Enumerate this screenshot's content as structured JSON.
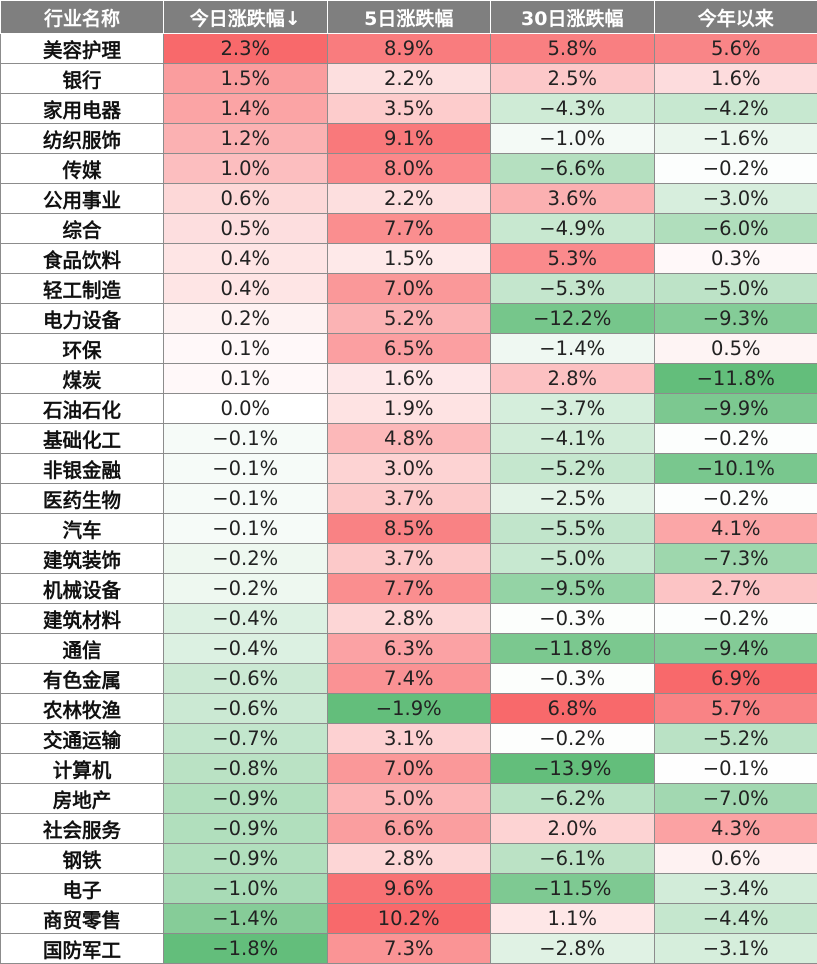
{
  "chart_data": {
    "type": "table",
    "columns": [
      "行业名称",
      "今日涨跌幅↓",
      "5日涨跌幅",
      "30日涨跌幅",
      "今年以来"
    ],
    "rows": [
      {
        "name": "美容护理",
        "values": [
          "2.3%",
          "8.9%",
          "5.8%",
          "5.6%"
        ]
      },
      {
        "name": "银行",
        "values": [
          "1.5%",
          "2.2%",
          "2.5%",
          "1.6%"
        ]
      },
      {
        "name": "家用电器",
        "values": [
          "1.4%",
          "3.5%",
          "−4.3%",
          "−4.2%"
        ]
      },
      {
        "name": "纺织服饰",
        "values": [
          "1.2%",
          "9.1%",
          "−1.0%",
          "−1.6%"
        ]
      },
      {
        "name": "传媒",
        "values": [
          "1.0%",
          "8.0%",
          "−6.6%",
          "−0.2%"
        ]
      },
      {
        "name": "公用事业",
        "values": [
          "0.6%",
          "2.2%",
          "3.6%",
          "−3.0%"
        ]
      },
      {
        "name": "综合",
        "values": [
          "0.5%",
          "7.7%",
          "−4.9%",
          "−6.0%"
        ]
      },
      {
        "name": "食品饮料",
        "values": [
          "0.4%",
          "1.5%",
          "5.3%",
          "0.3%"
        ]
      },
      {
        "name": "轻工制造",
        "values": [
          "0.4%",
          "7.0%",
          "−5.3%",
          "−5.0%"
        ]
      },
      {
        "name": "电力设备",
        "values": [
          "0.2%",
          "5.2%",
          "−12.2%",
          "−9.3%"
        ]
      },
      {
        "name": "环保",
        "values": [
          "0.1%",
          "6.5%",
          "−1.4%",
          "0.5%"
        ]
      },
      {
        "name": "煤炭",
        "values": [
          "0.1%",
          "1.6%",
          "2.8%",
          "−11.8%"
        ]
      },
      {
        "name": "石油石化",
        "values": [
          "0.0%",
          "1.9%",
          "−3.7%",
          "−9.9%"
        ]
      },
      {
        "name": "基础化工",
        "values": [
          "−0.1%",
          "4.8%",
          "−4.1%",
          "−0.2%"
        ]
      },
      {
        "name": "非银金融",
        "values": [
          "−0.1%",
          "3.0%",
          "−5.2%",
          "−10.1%"
        ]
      },
      {
        "name": "医药生物",
        "values": [
          "−0.1%",
          "3.7%",
          "−2.5%",
          "−0.2%"
        ]
      },
      {
        "name": "汽车",
        "values": [
          "−0.1%",
          "8.5%",
          "−5.5%",
          "4.1%"
        ]
      },
      {
        "name": "建筑装饰",
        "values": [
          "−0.2%",
          "3.7%",
          "−5.0%",
          "−7.3%"
        ]
      },
      {
        "name": "机械设备",
        "values": [
          "−0.2%",
          "7.7%",
          "−9.5%",
          "2.7%"
        ]
      },
      {
        "name": "建筑材料",
        "values": [
          "−0.4%",
          "2.8%",
          "−0.3%",
          "−0.2%"
        ]
      },
      {
        "name": "通信",
        "values": [
          "−0.4%",
          "6.3%",
          "−11.8%",
          "−9.4%"
        ]
      },
      {
        "name": "有色金属",
        "values": [
          "−0.6%",
          "7.4%",
          "−0.3%",
          "6.9%"
        ]
      },
      {
        "name": "农林牧渔",
        "values": [
          "−0.6%",
          "−1.9%",
          "6.8%",
          "5.7%"
        ]
      },
      {
        "name": "交通运输",
        "values": [
          "−0.7%",
          "3.1%",
          "−0.2%",
          "−5.2%"
        ]
      },
      {
        "name": "计算机",
        "values": [
          "−0.8%",
          "7.0%",
          "−13.9%",
          "−0.1%"
        ]
      },
      {
        "name": "房地产",
        "values": [
          "−0.9%",
          "5.0%",
          "−6.2%",
          "−7.0%"
        ]
      },
      {
        "name": "社会服务",
        "values": [
          "−0.9%",
          "6.6%",
          "2.0%",
          "4.3%"
        ]
      },
      {
        "name": "钢铁",
        "values": [
          "−0.9%",
          "2.8%",
          "−6.1%",
          "0.6%"
        ]
      },
      {
        "name": "电子",
        "values": [
          "−1.0%",
          "9.6%",
          "−11.5%",
          "−3.4%"
        ]
      },
      {
        "name": "商贸零售",
        "values": [
          "−1.4%",
          "10.2%",
          "1.1%",
          "−4.4%"
        ]
      },
      {
        "name": "国防军工",
        "values": [
          "−1.8%",
          "7.3%",
          "−2.8%",
          "−3.1%"
        ]
      }
    ],
    "colors": {
      "header_bg": "#7f7f7f",
      "header_text": "#ffffff",
      "positive": "#f8696b",
      "negative": "#63be7b",
      "neutral": "#ffffff"
    }
  }
}
